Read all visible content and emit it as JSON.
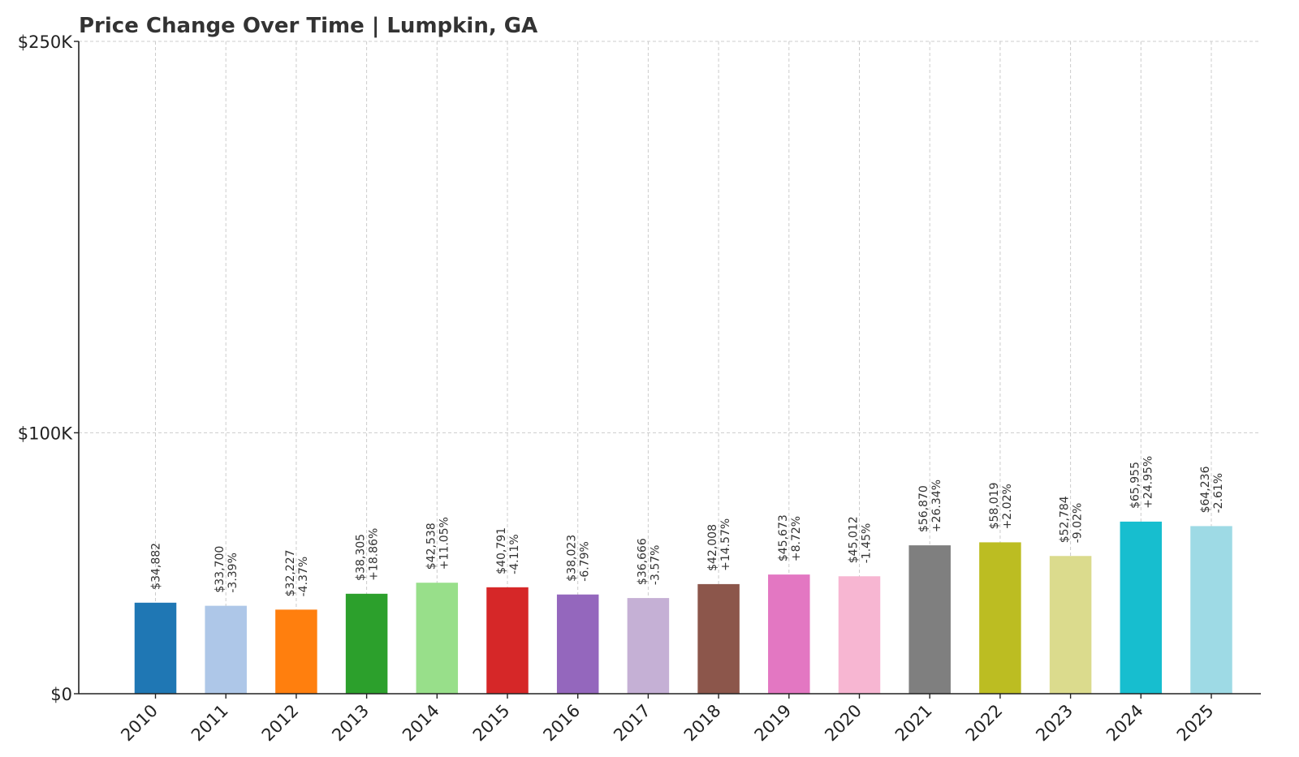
{
  "chart_data": {
    "type": "bar",
    "title": "Price Change Over Time | Lumpkin, GA",
    "xlabel": "",
    "ylabel": "",
    "ylim": [
      0,
      250000
    ],
    "y_ticks": [
      {
        "value": 0,
        "label": "$0"
      },
      {
        "value": 100000,
        "label": "$100K"
      },
      {
        "value": 250000,
        "label": "$250K"
      }
    ],
    "grid": true,
    "categories": [
      "2010",
      "2011",
      "2012",
      "2013",
      "2014",
      "2015",
      "2016",
      "2017",
      "2018",
      "2019",
      "2020",
      "2021",
      "2022",
      "2023",
      "2024",
      "2025"
    ],
    "values": [
      34882,
      33700,
      32227,
      38305,
      42538,
      40791,
      38023,
      36666,
      42008,
      45673,
      45012,
      56870,
      58019,
      52784,
      65955,
      64236
    ],
    "value_labels": [
      "$34,882",
      "$33,700",
      "$32,227",
      "$38,305",
      "$42,538",
      "$40,791",
      "$38,023",
      "$36,666",
      "$42,008",
      "$45,673",
      "$45,012",
      "$56,870",
      "$58,019",
      "$52,784",
      "$65,955",
      "$64,236"
    ],
    "change_labels": [
      "",
      "-3.39%",
      "-4.37%",
      "+18.86%",
      "+11.05%",
      "-4.11%",
      "-6.79%",
      "-3.57%",
      "+14.57%",
      "+8.72%",
      "-1.45%",
      "+26.34%",
      "+2.02%",
      "-9.02%",
      "+24.95%",
      "-2.61%"
    ],
    "colors": [
      "#1f77b4",
      "#aec7e8",
      "#ff7f0e",
      "#2ca02c",
      "#98df8a",
      "#d62728",
      "#9467bd",
      "#c5b0d5",
      "#8c564b",
      "#e377c2",
      "#f7b6d2",
      "#7f7f7f",
      "#bcbd22",
      "#dbdb8d",
      "#17becf",
      "#9edae5"
    ]
  }
}
